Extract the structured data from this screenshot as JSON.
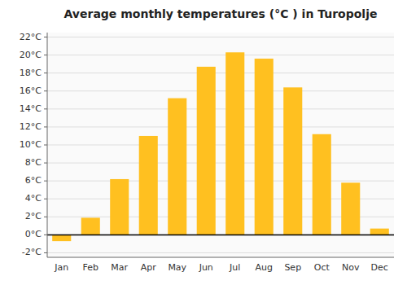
{
  "chart_data": {
    "type": "bar",
    "title": "Average monthly temperatures (°C ) in Turopolje",
    "categories": [
      "Jan",
      "Feb",
      "Mar",
      "Apr",
      "May",
      "Jun",
      "Jul",
      "Aug",
      "Sep",
      "Oct",
      "Nov",
      "Dec"
    ],
    "values": [
      -0.7,
      1.9,
      6.2,
      11.0,
      15.2,
      18.7,
      20.3,
      19.6,
      16.4,
      11.2,
      5.8,
      0.7
    ],
    "color": "#FFC020",
    "ylim": [
      -2.5,
      22.5
    ],
    "yticks": [
      {
        "value": -2,
        "label": "-2°C"
      },
      {
        "value": 0,
        "label": "0°C"
      },
      {
        "value": 2,
        "label": "2°C"
      },
      {
        "value": 4,
        "label": "4°C"
      },
      {
        "value": 6,
        "label": "6°C"
      },
      {
        "value": 8,
        "label": "8°C"
      },
      {
        "value": 10,
        "label": "10°C"
      },
      {
        "value": 12,
        "label": "12°C"
      },
      {
        "value": 14,
        "label": "14°C"
      },
      {
        "value": 16,
        "label": "16°C"
      },
      {
        "value": 18,
        "label": "18°C"
      },
      {
        "value": 20,
        "label": "20°C"
      },
      {
        "value": 22,
        "label": "22°C"
      }
    ],
    "grid": true
  }
}
